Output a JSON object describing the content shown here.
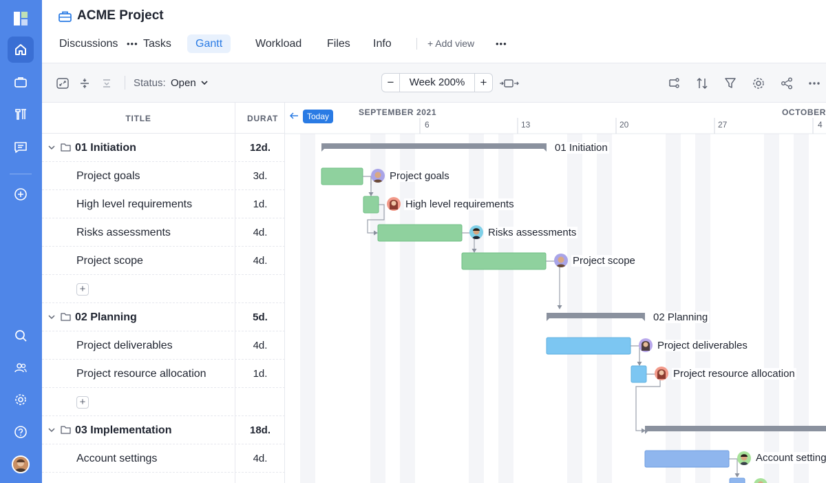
{
  "app": {
    "project_title": "ACME Project",
    "tabs": [
      {
        "label": "Discussions"
      },
      {
        "label": "Tasks"
      },
      {
        "label": "Gantt",
        "active": true
      },
      {
        "label": "Workload"
      },
      {
        "label": "Files"
      },
      {
        "label": "Info"
      }
    ],
    "add_view_label": "+ Add view",
    "more_icon": "more-icon",
    "tab_more": "•••"
  },
  "toolbar": {
    "status_label": "Status:",
    "status_value": "Open",
    "zoom_minus": "−",
    "zoom_plus": "+",
    "zoom_label": "Week 200%"
  },
  "grid": {
    "col_title": "TITLE",
    "col_duration": "DURAT",
    "rows": [
      {
        "type": "group",
        "name": "01 Initiation",
        "duration": "12d."
      },
      {
        "type": "task",
        "name": "Project goals",
        "duration": "3d."
      },
      {
        "type": "task",
        "name": "High level requirements",
        "duration": "1d."
      },
      {
        "type": "task",
        "name": "Risks assessments",
        "duration": "4d."
      },
      {
        "type": "task",
        "name": "Project scope",
        "duration": "4d."
      },
      {
        "type": "add",
        "name": "+",
        "duration": ""
      },
      {
        "type": "group",
        "name": "02 Planning",
        "duration": "5d."
      },
      {
        "type": "task",
        "name": "Project deliverables",
        "duration": "4d."
      },
      {
        "type": "task",
        "name": "Project resource allocation",
        "duration": "1d."
      },
      {
        "type": "add",
        "name": "+",
        "duration": ""
      },
      {
        "type": "group",
        "name": "03 Implementation",
        "duration": "18d."
      },
      {
        "type": "task",
        "name": "Account settings",
        "duration": "4d."
      }
    ]
  },
  "timeline": {
    "today_label": "Today",
    "months": [
      {
        "label": "SEPTEMBER 2021"
      },
      {
        "label": "OCTOBER"
      }
    ],
    "days": [
      "6",
      "13",
      "20",
      "27",
      "4"
    ],
    "bar_labels": [
      "01 Initiation",
      "Project goals",
      "High level requirements",
      "Risks assessments",
      "Project scope",
      "02 Planning",
      "Project deliverables",
      "Project resource allocation",
      "Account settings"
    ]
  },
  "colors": {
    "sidebar": "#4f86e8",
    "accent": "#2a7be4",
    "phase1_bar": "#8fd19e",
    "phase2_bar": "#7cc6f2",
    "phase3_bar": "#8fb6ee",
    "summary_bar": "#8a919e"
  }
}
